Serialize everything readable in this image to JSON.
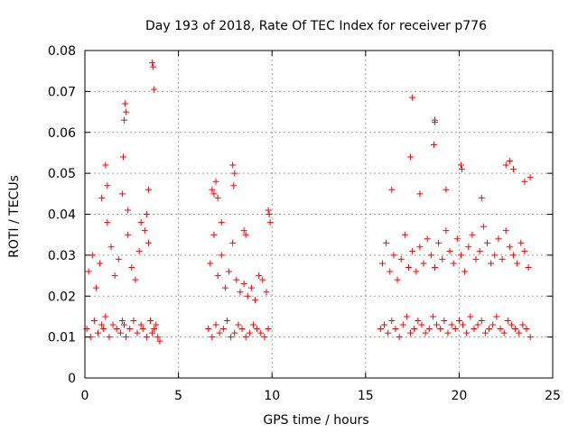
{
  "chart_data": {
    "type": "scatter",
    "title": "Day 193 of 2018, Rate Of TEC Index for receiver p776",
    "xlabel": "GPS time / hours",
    "ylabel": "ROTI / TECUs",
    "xlim": [
      0,
      25
    ],
    "ylim": [
      0,
      0.08
    ],
    "xticks": [
      0,
      5,
      10,
      15,
      20,
      25
    ],
    "yticks": [
      0,
      0.01,
      0.02,
      0.03,
      0.04,
      0.05,
      0.06,
      0.07,
      0.08
    ],
    "xtick_labels": [
      "0",
      "5",
      "10",
      "15",
      "20",
      "25"
    ],
    "ytick_labels": [
      "0",
      "0.01",
      "0.02",
      "0.03",
      "0.04",
      "0.05",
      "0.06",
      "0.07",
      "0.08"
    ],
    "grid": true,
    "marker": "+",
    "color": "#ff0000",
    "series": [
      {
        "name": "ROTI",
        "x": [
          0.1,
          0.3,
          0.5,
          0.7,
          0.9,
          1.0,
          1.1,
          1.3,
          1.5,
          1.7,
          1.9,
          2.0,
          2.1,
          2.2,
          2.4,
          2.6,
          2.8,
          3.0,
          3.1,
          3.3,
          3.5,
          3.6,
          3.7,
          3.8,
          3.9,
          4.0,
          0.2,
          0.4,
          0.6,
          0.8,
          1.2,
          1.4,
          1.6,
          1.8,
          2.3,
          2.5,
          2.7,
          2.9,
          3.2,
          3.4,
          2.0,
          2.05,
          2.1,
          2.15,
          3.6,
          3.65,
          3.7,
          3.4,
          1.1,
          1.2,
          0.9,
          2.2,
          2.3,
          3.3,
          3.0,
          6.6,
          6.8,
          7.0,
          7.2,
          7.4,
          7.6,
          7.8,
          8.0,
          8.2,
          8.4,
          8.6,
          8.8,
          9.0,
          9.2,
          9.4,
          9.6,
          9.8,
          6.7,
          6.9,
          7.1,
          7.3,
          7.5,
          7.7,
          7.9,
          8.1,
          8.3,
          8.5,
          8.7,
          8.9,
          9.1,
          9.3,
          9.5,
          9.7,
          6.9,
          7.0,
          7.1,
          7.9,
          8.0,
          7.95,
          9.8,
          9.85,
          9.9,
          8.5,
          8.6,
          7.3,
          6.8,
          15.8,
          16.0,
          16.2,
          16.4,
          16.6,
          16.8,
          17.0,
          17.2,
          17.4,
          17.6,
          17.8,
          18.0,
          18.2,
          18.4,
          18.6,
          18.8,
          19.0,
          19.2,
          19.4,
          19.6,
          19.8,
          20.0,
          20.2,
          20.4,
          20.6,
          20.8,
          21.0,
          21.2,
          21.4,
          21.6,
          21.8,
          22.0,
          22.2,
          22.4,
          22.6,
          22.8,
          23.0,
          23.2,
          23.4,
          23.6,
          23.8,
          15.9,
          16.1,
          16.3,
          16.5,
          16.7,
          16.9,
          17.1,
          17.3,
          17.5,
          17.7,
          17.9,
          18.1,
          18.3,
          18.5,
          18.7,
          18.9,
          19.1,
          19.3,
          19.5,
          19.7,
          19.9,
          20.1,
          20.3,
          20.5,
          20.7,
          20.9,
          21.1,
          21.3,
          21.5,
          21.7,
          21.9,
          22.1,
          22.3,
          22.5,
          22.7,
          22.9,
          23.1,
          23.3,
          23.5,
          23.7,
          17.5,
          17.4,
          18.7,
          18.65,
          18.7,
          20.1,
          20.15,
          22.5,
          22.7,
          22.9,
          23.8,
          16.4,
          19.3,
          21.2,
          17.9,
          23.5
        ],
        "y": [
          0.012,
          0.01,
          0.014,
          0.011,
          0.013,
          0.012,
          0.015,
          0.01,
          0.013,
          0.012,
          0.011,
          0.014,
          0.013,
          0.01,
          0.012,
          0.014,
          0.011,
          0.013,
          0.012,
          0.01,
          0.014,
          0.011,
          0.012,
          0.013,
          0.01,
          0.009,
          0.026,
          0.03,
          0.022,
          0.028,
          0.038,
          0.032,
          0.025,
          0.029,
          0.035,
          0.027,
          0.024,
          0.031,
          0.036,
          0.033,
          0.045,
          0.054,
          0.063,
          0.067,
          0.077,
          0.076,
          0.0705,
          0.046,
          0.052,
          0.047,
          0.044,
          0.065,
          0.041,
          0.04,
          0.038,
          0.012,
          0.01,
          0.013,
          0.011,
          0.012,
          0.014,
          0.01,
          0.011,
          0.013,
          0.012,
          0.01,
          0.011,
          0.013,
          0.012,
          0.011,
          0.01,
          0.012,
          0.028,
          0.035,
          0.025,
          0.03,
          0.022,
          0.026,
          0.033,
          0.024,
          0.021,
          0.023,
          0.02,
          0.022,
          0.019,
          0.025,
          0.024,
          0.021,
          0.045,
          0.048,
          0.044,
          0.052,
          0.05,
          0.047,
          0.041,
          0.04,
          0.038,
          0.036,
          0.035,
          0.038,
          0.046,
          0.012,
          0.013,
          0.011,
          0.014,
          0.012,
          0.01,
          0.013,
          0.015,
          0.011,
          0.012,
          0.014,
          0.013,
          0.011,
          0.012,
          0.015,
          0.013,
          0.012,
          0.014,
          0.011,
          0.013,
          0.012,
          0.014,
          0.013,
          0.011,
          0.015,
          0.012,
          0.013,
          0.014,
          0.011,
          0.012,
          0.013,
          0.015,
          0.012,
          0.011,
          0.014,
          0.013,
          0.012,
          0.011,
          0.013,
          0.012,
          0.01,
          0.028,
          0.033,
          0.026,
          0.03,
          0.024,
          0.029,
          0.035,
          0.027,
          0.031,
          0.026,
          0.032,
          0.028,
          0.034,
          0.03,
          0.027,
          0.033,
          0.029,
          0.036,
          0.031,
          0.028,
          0.034,
          0.03,
          0.026,
          0.032,
          0.035,
          0.029,
          0.031,
          0.037,
          0.033,
          0.028,
          0.03,
          0.034,
          0.029,
          0.036,
          0.032,
          0.03,
          0.028,
          0.033,
          0.031,
          0.027,
          0.0685,
          0.054,
          0.063,
          0.057,
          0.0625,
          0.052,
          0.051,
          0.052,
          0.053,
          0.051,
          0.049,
          0.046,
          0.046,
          0.044,
          0.045,
          0.048
        ]
      }
    ]
  }
}
